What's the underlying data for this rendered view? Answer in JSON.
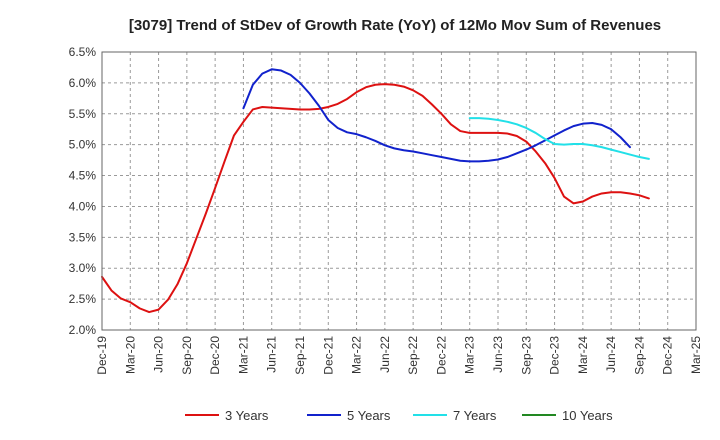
{
  "chart_data": {
    "type": "line",
    "title": "[3079]  Trend of StDev of Growth Rate (YoY) of 12Mo Mov Sum of Revenues",
    "xlabel": "",
    "ylabel": "",
    "ylim": [
      0.02,
      0.065
    ],
    "y_ticks": [
      {
        "value": 0.02,
        "label": "2.0%"
      },
      {
        "value": 0.025,
        "label": "2.5%"
      },
      {
        "value": 0.03,
        "label": "3.0%"
      },
      {
        "value": 0.035,
        "label": "3.5%"
      },
      {
        "value": 0.04,
        "label": "4.0%"
      },
      {
        "value": 0.045,
        "label": "4.5%"
      },
      {
        "value": 0.05,
        "label": "5.0%"
      },
      {
        "value": 0.055,
        "label": "5.5%"
      },
      {
        "value": 0.06,
        "label": "6.0%"
      },
      {
        "value": 0.065,
        "label": "6.5%"
      }
    ],
    "x_range": [
      0,
      63
    ],
    "x_ticks": [
      {
        "index": 0,
        "label": "Dec-19"
      },
      {
        "index": 3,
        "label": "Mar-20"
      },
      {
        "index": 6,
        "label": "Jun-20"
      },
      {
        "index": 9,
        "label": "Sep-20"
      },
      {
        "index": 12,
        "label": "Dec-20"
      },
      {
        "index": 15,
        "label": "Mar-21"
      },
      {
        "index": 18,
        "label": "Jun-21"
      },
      {
        "index": 21,
        "label": "Sep-21"
      },
      {
        "index": 24,
        "label": "Dec-21"
      },
      {
        "index": 27,
        "label": "Mar-22"
      },
      {
        "index": 30,
        "label": "Jun-22"
      },
      {
        "index": 33,
        "label": "Sep-22"
      },
      {
        "index": 36,
        "label": "Dec-22"
      },
      {
        "index": 39,
        "label": "Mar-23"
      },
      {
        "index": 42,
        "label": "Jun-23"
      },
      {
        "index": 45,
        "label": "Sep-23"
      },
      {
        "index": 48,
        "label": "Dec-23"
      },
      {
        "index": 51,
        "label": "Mar-24"
      },
      {
        "index": 54,
        "label": "Jun-24"
      },
      {
        "index": 57,
        "label": "Sep-24"
      },
      {
        "index": 60,
        "label": "Dec-24"
      },
      {
        "index": 63,
        "label": "Mar-25"
      }
    ],
    "series": [
      {
        "name": "3 Years",
        "color": "#dd1111",
        "start_index": 0,
        "values": [
          0.0286,
          0.0264,
          0.0251,
          0.0245,
          0.0235,
          0.0229,
          0.0233,
          0.0249,
          0.0274,
          0.0308,
          0.0348,
          0.0388,
          0.043,
          0.0473,
          0.0515,
          0.0537,
          0.0557,
          0.0561,
          0.056,
          0.0559,
          0.0558,
          0.0557,
          0.0557,
          0.0558,
          0.0561,
          0.0566,
          0.0574,
          0.0585,
          0.0593,
          0.0597,
          0.0598,
          0.0597,
          0.0594,
          0.0588,
          0.0579,
          0.0565,
          0.055,
          0.0533,
          0.0522,
          0.0519,
          0.0519,
          0.0519,
          0.0519,
          0.0518,
          0.0514,
          0.0505,
          0.0489,
          0.047,
          0.0446,
          0.0416,
          0.0405,
          0.0408,
          0.0416,
          0.0421,
          0.0423,
          0.0423,
          0.0421,
          0.0418,
          0.0413
        ]
      },
      {
        "name": "5 Years",
        "color": "#1122cc",
        "start_index": 15,
        "values": [
          0.0559,
          0.0597,
          0.0615,
          0.0622,
          0.062,
          0.0613,
          0.06,
          0.0583,
          0.0563,
          0.054,
          0.0527,
          0.052,
          0.0517,
          0.0512,
          0.0506,
          0.0499,
          0.0494,
          0.0491,
          0.0489,
          0.0486,
          0.0483,
          0.048,
          0.0477,
          0.0474,
          0.0473,
          0.0473,
          0.0474,
          0.0476,
          0.048,
          0.0486,
          0.0492,
          0.0499,
          0.0507,
          0.0515,
          0.0523,
          0.053,
          0.0534,
          0.0535,
          0.0532,
          0.0525,
          0.0512,
          0.0496
        ]
      },
      {
        "name": "7 Years",
        "color": "#22e0e8",
        "start_index": 39,
        "values": [
          0.0543,
          0.0543,
          0.0542,
          0.054,
          0.0537,
          0.0533,
          0.0527,
          0.0519,
          0.0509,
          0.0501,
          0.05,
          0.0501,
          0.0501,
          0.0499,
          0.0496,
          0.0492,
          0.0488,
          0.0484,
          0.048,
          0.0477
        ]
      },
      {
        "name": "10 Years",
        "color": "#228822",
        "start_index": 0,
        "values": []
      }
    ]
  }
}
